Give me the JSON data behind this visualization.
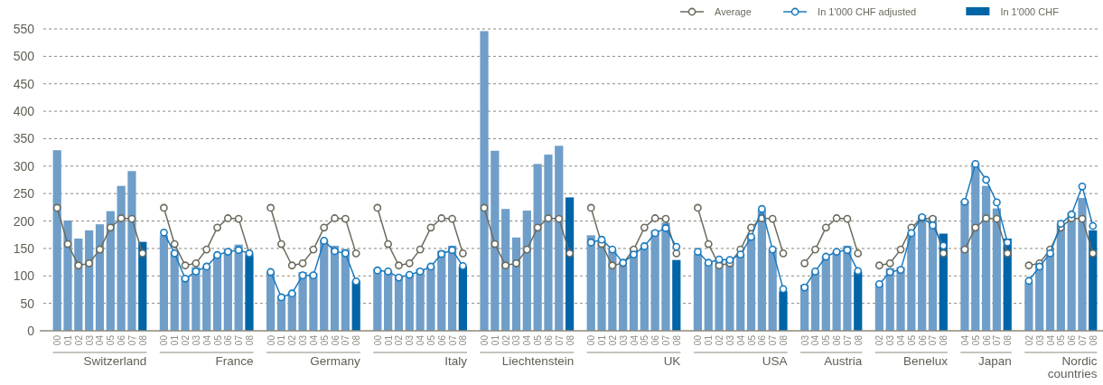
{
  "chart_data": {
    "type": "bar",
    "categories": [
      "00",
      "01",
      "02",
      "03",
      "04",
      "05",
      "06",
      "07",
      "08",
      null,
      "00",
      "01",
      "02",
      "03",
      "04",
      "05",
      "06",
      "07",
      "08",
      null,
      "00",
      "01",
      "02",
      "03",
      "04",
      "05",
      "06",
      "07",
      "08",
      null,
      "00",
      "01",
      "02",
      "03",
      "04",
      "05",
      "06",
      "07",
      "08",
      null,
      "00",
      "01",
      "02",
      "03",
      "04",
      "05",
      "06",
      "07",
      "08",
      null,
      "00",
      "01",
      "02",
      "03",
      "04",
      "05",
      "06",
      "07",
      "08",
      null,
      "00",
      "01",
      "02",
      "03",
      "04",
      "05",
      "06",
      "07",
      "08",
      null,
      "03",
      "04",
      "05",
      "06",
      "07",
      "08",
      null,
      "02",
      "03",
      "04",
      "05",
      "06",
      "07",
      "08",
      null,
      "04",
      "05",
      "06",
      "07",
      "08",
      null,
      "02",
      "03",
      "04",
      "05",
      "06",
      "07",
      "08"
    ],
    "series": [
      {
        "name": "Average",
        "type": "line",
        "color": "#6b6b5e",
        "values": [
          224,
          158,
          119,
          123,
          148,
          188,
          205,
          204,
          141,
          null,
          224,
          158,
          119,
          123,
          148,
          188,
          205,
          204,
          141,
          null,
          224,
          158,
          119,
          123,
          148,
          188,
          205,
          204,
          141,
          null,
          224,
          158,
          119,
          123,
          148,
          188,
          205,
          204,
          141,
          null,
          224,
          158,
          119,
          123,
          148,
          188,
          205,
          204,
          141,
          null,
          224,
          158,
          119,
          123,
          148,
          188,
          205,
          204,
          141,
          null,
          224,
          158,
          119,
          123,
          148,
          188,
          205,
          204,
          141,
          null,
          123,
          148,
          188,
          205,
          204,
          141,
          null,
          119,
          123,
          148,
          188,
          205,
          204,
          141,
          null,
          148,
          188,
          205,
          204,
          141,
          null,
          119,
          123,
          148,
          188,
          205,
          204,
          141
        ]
      },
      {
        "name": "In 1'000 CHF adjusted",
        "type": "line",
        "color": "#1a7abf",
        "values": [
          null,
          null,
          null,
          null,
          null,
          null,
          null,
          null,
          null,
          null,
          179,
          141,
          95,
          108,
          117,
          138,
          144,
          147,
          141,
          null,
          107,
          61,
          68,
          101,
          101,
          164,
          145,
          141,
          90,
          null,
          110,
          108,
          97,
          102,
          108,
          117,
          140,
          147,
          118,
          null,
          null,
          null,
          null,
          null,
          null,
          null,
          null,
          null,
          null,
          null,
          161,
          166,
          148,
          124,
          139,
          154,
          178,
          187,
          153,
          null,
          144,
          124,
          130,
          129,
          139,
          171,
          222,
          148,
          76,
          null,
          79,
          108,
          135,
          144,
          147,
          109,
          null,
          85,
          107,
          111,
          178,
          207,
          192,
          155,
          null,
          235,
          304,
          275,
          234,
          161,
          null,
          91,
          117,
          141,
          195,
          212,
          263,
          191
        ]
      },
      {
        "name": "In 1'000 CHF",
        "type": "bar",
        "color": "#0064a6",
        "values": [
          329,
          201,
          168,
          183,
          194,
          218,
          264,
          291,
          162,
          null,
          174,
          145,
          99,
          116,
          118,
          138,
          149,
          157,
          139,
          null,
          107,
          61,
          69,
          107,
          105,
          165,
          155,
          149,
          91,
          null,
          113,
          109,
          99,
          102,
          113,
          118,
          146,
          155,
          117,
          null,
          546,
          328,
          222,
          170,
          219,
          304,
          321,
          337,
          243,
          null,
          174,
          165,
          146,
          119,
          147,
          152,
          183,
          197,
          129,
          null,
          140,
          125,
          130,
          131,
          139,
          171,
          220,
          147,
          72,
          null,
          84,
          107,
          135,
          144,
          155,
          107,
          null,
          86,
          114,
          116,
          179,
          211,
          208,
          177,
          null,
          237,
          305,
          264,
          223,
          168,
          null,
          88,
          121,
          141,
          195,
          216,
          242,
          183
        ],
        "colors": [
          "#6f9ec9",
          "#6f9ec9",
          "#6f9ec9",
          "#6f9ec9",
          "#6f9ec9",
          "#6f9ec9",
          "#6f9ec9",
          "#6f9ec9",
          "#0064a6",
          null,
          "#6f9ec9",
          "#6f9ec9",
          "#6f9ec9",
          "#6f9ec9",
          "#6f9ec9",
          "#6f9ec9",
          "#6f9ec9",
          "#6f9ec9",
          "#0064a6",
          null,
          "#6f9ec9",
          "#6f9ec9",
          "#6f9ec9",
          "#6f9ec9",
          "#6f9ec9",
          "#6f9ec9",
          "#6f9ec9",
          "#6f9ec9",
          "#0064a6",
          null,
          "#6f9ec9",
          "#6f9ec9",
          "#6f9ec9",
          "#6f9ec9",
          "#6f9ec9",
          "#6f9ec9",
          "#6f9ec9",
          "#6f9ec9",
          "#0064a6",
          null,
          "#6f9ec9",
          "#6f9ec9",
          "#6f9ec9",
          "#6f9ec9",
          "#6f9ec9",
          "#6f9ec9",
          "#6f9ec9",
          "#6f9ec9",
          "#0064a6",
          null,
          "#6f9ec9",
          "#6f9ec9",
          "#6f9ec9",
          "#6f9ec9",
          "#6f9ec9",
          "#6f9ec9",
          "#6f9ec9",
          "#6f9ec9",
          "#0064a6",
          null,
          "#6f9ec9",
          "#6f9ec9",
          "#6f9ec9",
          "#6f9ec9",
          "#6f9ec9",
          "#6f9ec9",
          "#6f9ec9",
          "#6f9ec9",
          "#0064a6",
          null,
          "#6f9ec9",
          "#6f9ec9",
          "#6f9ec9",
          "#6f9ec9",
          "#6f9ec9",
          "#0064a6",
          null,
          "#6f9ec9",
          "#6f9ec9",
          "#6f9ec9",
          "#6f9ec9",
          "#6f9ec9",
          "#6f9ec9",
          "#0064a6",
          null,
          "#6f9ec9",
          "#6f9ec9",
          "#6f9ec9",
          "#6f9ec9",
          "#0064a6",
          null,
          "#6f9ec9",
          "#6f9ec9",
          "#6f9ec9",
          "#6f9ec9",
          "#6f9ec9",
          "#6f9ec9",
          "#0064a6"
        ]
      }
    ],
    "ylim": [
      0,
      550
    ],
    "yticks": [
      0,
      50,
      100,
      150,
      200,
      250,
      300,
      350,
      400,
      450,
      500,
      550
    ],
    "grid": "y",
    "legend": "top right",
    "marker": "circle",
    "annotations": [
      "Switzerland",
      "France",
      "Germany",
      "Italy",
      "Liechtenstein",
      "UK",
      "USA",
      "Austria",
      "Benelux",
      "Japan",
      "Nordic countries"
    ]
  }
}
